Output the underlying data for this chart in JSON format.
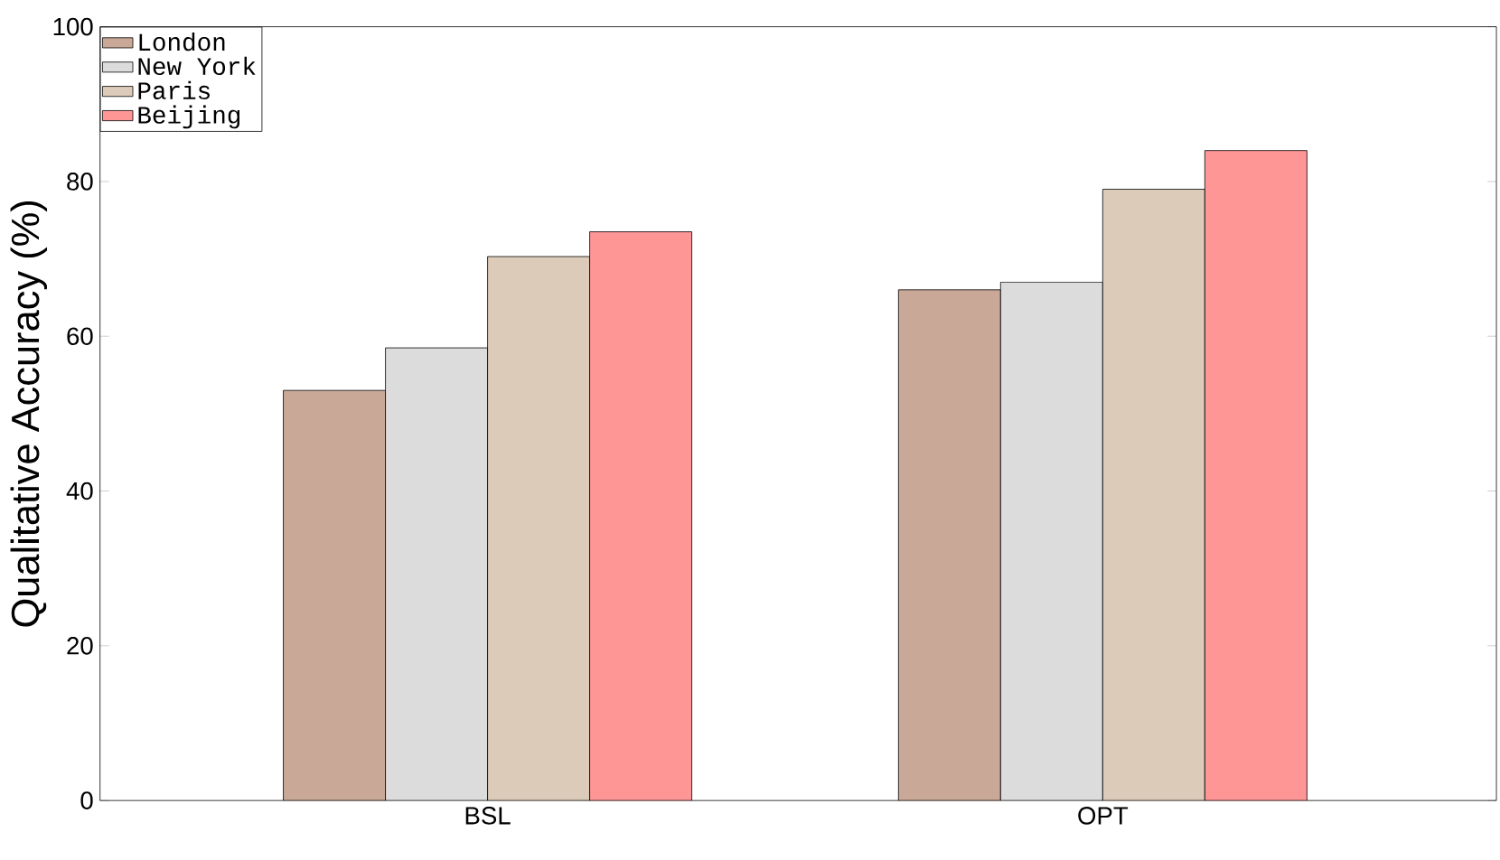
{
  "chart_data": {
    "type": "bar",
    "ylabel": "Qualitative Accuracy (%)",
    "categories": [
      "BSL",
      "OPT"
    ],
    "series": [
      {
        "name": "London",
        "color": "#c9a898",
        "values": [
          53.0,
          66.0
        ]
      },
      {
        "name": "New York",
        "color": "#dcdcdc",
        "values": [
          58.5,
          67.0
        ]
      },
      {
        "name": "Paris",
        "color": "#dccbb9",
        "values": [
          70.3,
          79.0
        ]
      },
      {
        "name": "Beijing",
        "color": "#fe9696",
        "values": [
          73.5,
          84.0
        ]
      }
    ],
    "ylim": [
      0,
      100
    ],
    "yticks": [
      0,
      20,
      40,
      60,
      80,
      100
    ],
    "grid": false,
    "legend": "top left"
  }
}
